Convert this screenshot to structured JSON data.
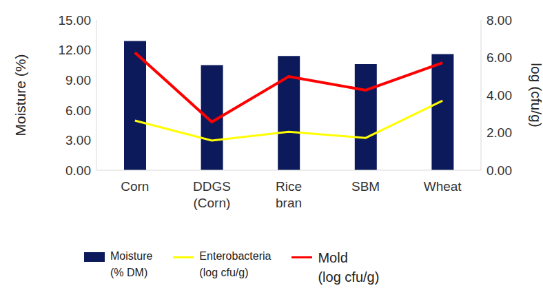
{
  "chart_data": {
    "type": "bar",
    "categories": [
      "Corn",
      "DDGS (Corn)",
      "Rice bran",
      "SBM",
      "Wheat"
    ],
    "y_label": "Moisture (%)",
    "y2_label": "log (cfu/g)",
    "ylim": [
      0,
      15
    ],
    "yticks": [
      {
        "value": 0,
        "label": "0.00"
      },
      {
        "value": 3,
        "label": "3.00"
      },
      {
        "value": 6,
        "label": "6.00"
      },
      {
        "value": 9,
        "label": "9.00"
      },
      {
        "value": 12,
        "label": "12.00"
      },
      {
        "value": 15,
        "label": "15.00"
      }
    ],
    "y2lim": [
      0,
      8
    ],
    "y2ticks": [
      {
        "value": 0,
        "label": "0.00"
      },
      {
        "value": 2,
        "label": "2.00"
      },
      {
        "value": 4,
        "label": "4.00"
      },
      {
        "value": 6,
        "label": "6.00"
      },
      {
        "value": 8,
        "label": "8.00"
      }
    ],
    "grid": false,
    "legend": "bottom",
    "series": [
      {
        "name": "Moisture (% DM)",
        "type": "bar",
        "color": "#0c1a5b",
        "values": [
          12.9,
          10.5,
          11.4,
          10.6,
          11.6
        ]
      },
      {
        "name": "Enterobacteria (log cfu/g)",
        "type": "line",
        "axis": "y2",
        "color": "#ffff00",
        "values": [
          2.64,
          1.58,
          2.05,
          1.72,
          3.7
        ]
      },
      {
        "name": "Mold (log cfu/g)",
        "type": "line",
        "axis": "y2",
        "color": "#ff0000",
        "values": [
          6.27,
          2.57,
          4.99,
          4.26,
          5.72
        ]
      }
    ]
  }
}
